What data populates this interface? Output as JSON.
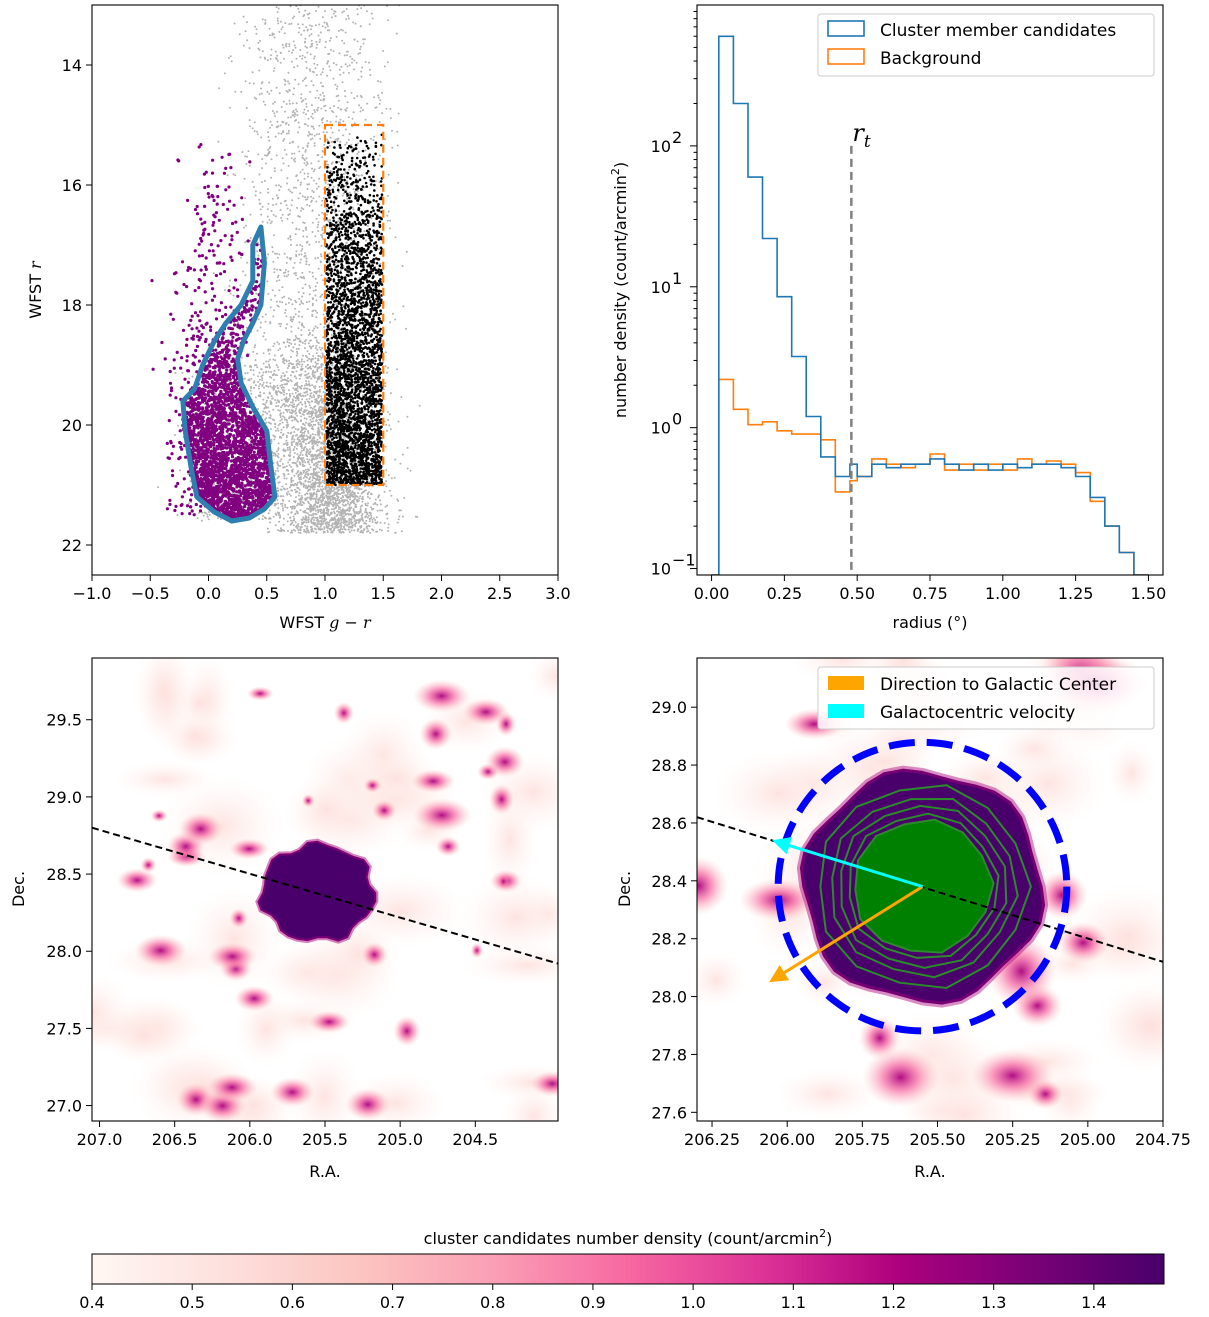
{
  "chart_data": [
    {
      "panel": "cmd",
      "type": "scatter",
      "xlabel_prefix": "WFST",
      "xlabel_var": "g − r",
      "ylabel_prefix": "WFST",
      "ylabel_var": "r",
      "xlim": [
        -1.0,
        3.0
      ],
      "ylim": [
        22.5,
        13.0
      ],
      "yaxis_inverted": true,
      "xticks": [
        "−1.0",
        "−0.5",
        "0.0",
        "0.5",
        "1.0",
        "1.5",
        "2.0",
        "2.5",
        "3.0"
      ],
      "yticks": [
        "14",
        "16",
        "18",
        "20",
        "22"
      ],
      "colors": {
        "field": "#b3b3b3",
        "members": "#800080",
        "background": "#000000",
        "isochrone": "#2e7eb0",
        "box": "#ff7f0e"
      },
      "isochrone_polygon": [
        [
          0.45,
          16.7
        ],
        [
          0.48,
          17.3
        ],
        [
          0.45,
          18.0
        ],
        [
          0.38,
          18.3
        ],
        [
          0.3,
          18.6
        ],
        [
          0.25,
          18.9
        ],
        [
          0.28,
          19.3
        ],
        [
          0.38,
          19.7
        ],
        [
          0.5,
          20.1
        ],
        [
          0.53,
          20.6
        ],
        [
          0.57,
          21.2
        ],
        [
          0.48,
          21.4
        ],
        [
          0.35,
          21.55
        ],
        [
          0.2,
          21.6
        ],
        [
          0.05,
          21.45
        ],
        [
          -0.1,
          21.2
        ],
        [
          -0.15,
          20.7
        ],
        [
          -0.2,
          20.1
        ],
        [
          -0.22,
          19.6
        ],
        [
          -0.12,
          19.4
        ],
        [
          -0.05,
          19.0
        ],
        [
          0.05,
          18.6
        ],
        [
          0.15,
          18.3
        ],
        [
          0.28,
          18.0
        ],
        [
          0.38,
          17.6
        ],
        [
          0.38,
          17.0
        ],
        [
          0.45,
          16.7
        ]
      ],
      "background_box": {
        "x": [
          1.0,
          1.5
        ],
        "y": [
          15.0,
          21.0
        ]
      }
    },
    {
      "panel": "radial",
      "type": "histogram",
      "ylabel_text": "number density (count/arcmin",
      "ylabel_sup": "2",
      "ylabel_close": ")",
      "xlabel": "radius (°)",
      "yscale": "log",
      "xlim": [
        -0.05,
        1.55
      ],
      "ylim": [
        0.09,
        1000
      ],
      "xticks": [
        "0.00",
        "0.25",
        "0.50",
        "0.75",
        "1.00",
        "1.25",
        "1.50"
      ],
      "yticks": [
        {
          "m": "10",
          "e": "2"
        },
        {
          "m": "10",
          "e": "1"
        },
        {
          "m": "10",
          "e": "0"
        },
        {
          "m": "10",
          "e": "−1"
        }
      ],
      "bin_edges": [
        0.0,
        0.025,
        0.075,
        0.125,
        0.175,
        0.225,
        0.275,
        0.325,
        0.375,
        0.425,
        0.475,
        0.5,
        0.55,
        0.6,
        0.65,
        0.7,
        0.75,
        0.8,
        0.85,
        0.9,
        0.95,
        1.0,
        1.05,
        1.1,
        1.15,
        1.2,
        1.25,
        1.3,
        1.35,
        1.4,
        1.45,
        1.5
      ],
      "series": [
        {
          "name": "Cluster member candidates",
          "color": "#1f77b4",
          "values": [
            0.09,
            600,
            200,
            60,
            22,
            8.5,
            3.2,
            1.2,
            0.62,
            0.45,
            0.55,
            0.45,
            0.55,
            0.52,
            0.55,
            0.55,
            0.6,
            0.55,
            0.5,
            0.55,
            0.5,
            0.55,
            0.52,
            0.55,
            0.55,
            0.52,
            0.45,
            0.32,
            0.2,
            0.13,
            0.09
          ]
        },
        {
          "name": "Background",
          "color": "#ff7f0e",
          "values": [
            0.09,
            2.2,
            1.35,
            1.05,
            1.1,
            0.95,
            0.9,
            0.9,
            0.82,
            0.35,
            0.42,
            0.45,
            0.6,
            0.55,
            0.52,
            0.55,
            0.65,
            0.5,
            0.55,
            0.5,
            0.55,
            0.5,
            0.6,
            0.55,
            0.58,
            0.55,
            0.48,
            0.3,
            0.2,
            0.13,
            0.09
          ]
        }
      ],
      "tidal_radius": {
        "x": 0.48,
        "label_var": "r",
        "label_sub": "t",
        "color": "#808080"
      },
      "legend_loc": "top-right"
    },
    {
      "panel": "density_wide",
      "type": "heatmap",
      "xlabel": "R.A.",
      "ylabel": "Dec.",
      "xlim": [
        207.05,
        203.95
      ],
      "ylim": [
        26.9,
        29.9
      ],
      "xticks": [
        "207.0",
        "206.5",
        "206.0",
        "205.5",
        "205.0",
        "204.5"
      ],
      "yticks": [
        "29.5",
        "29.0",
        "28.5",
        "28.0",
        "27.5",
        "27.0"
      ],
      "cluster_center": [
        205.55,
        28.38
      ],
      "cluster_radius_deg": 0.38,
      "orbit_line": {
        "from": [
          207.05,
          28.8
        ],
        "to": [
          203.95,
          27.92
        ]
      }
    },
    {
      "panel": "density_zoom",
      "type": "heatmap",
      "xlabel": "R.A.",
      "ylabel": "Dec.",
      "xlim": [
        206.3,
        204.75
      ],
      "ylim": [
        27.57,
        29.17
      ],
      "xticks": [
        "206.25",
        "206.00",
        "205.75",
        "205.50",
        "205.25",
        "205.00",
        "204.75"
      ],
      "yticks": [
        "29.0",
        "28.8",
        "28.6",
        "28.4",
        "28.2",
        "28.0",
        "27.8",
        "27.6"
      ],
      "cluster_center": [
        205.55,
        28.38
      ],
      "tidal_circle_radius_deg": 0.48,
      "orbit_line": {
        "from": [
          206.3,
          28.62
        ],
        "to": [
          204.75,
          28.12
        ]
      },
      "arrows": [
        {
          "name": "Direction to Galactic Center",
          "color": "#ffa500",
          "to": [
            206.06,
            28.05
          ]
        },
        {
          "name": "Galactocentric velocity",
          "color": "#00ffff",
          "to": [
            206.05,
            28.54
          ]
        }
      ],
      "colors": {
        "core": "#008000",
        "contours": "#2b8a2b",
        "tidal_circle": "#0000ff"
      },
      "legend_loc": "top-right"
    }
  ],
  "colorbar": {
    "label_text": "cluster candidates number density (count/arcmin",
    "label_sup": "2",
    "label_close": ")",
    "range": [
      0.4,
      1.47
    ],
    "ticks": [
      "0.4",
      "0.5",
      "0.6",
      "0.7",
      "0.8",
      "0.9",
      "1.0",
      "1.1",
      "1.2",
      "1.3",
      "1.4"
    ],
    "tick_values": [
      0.4,
      0.5,
      0.6,
      0.7,
      0.8,
      0.9,
      1.0,
      1.1,
      1.2,
      1.3,
      1.4
    ],
    "cmap": [
      "#fff7f3",
      "#fde0dd",
      "#fcc5c0",
      "#fa9fb5",
      "#f768a1",
      "#dd3497",
      "#ae017e",
      "#7a0177",
      "#49006a"
    ]
  }
}
